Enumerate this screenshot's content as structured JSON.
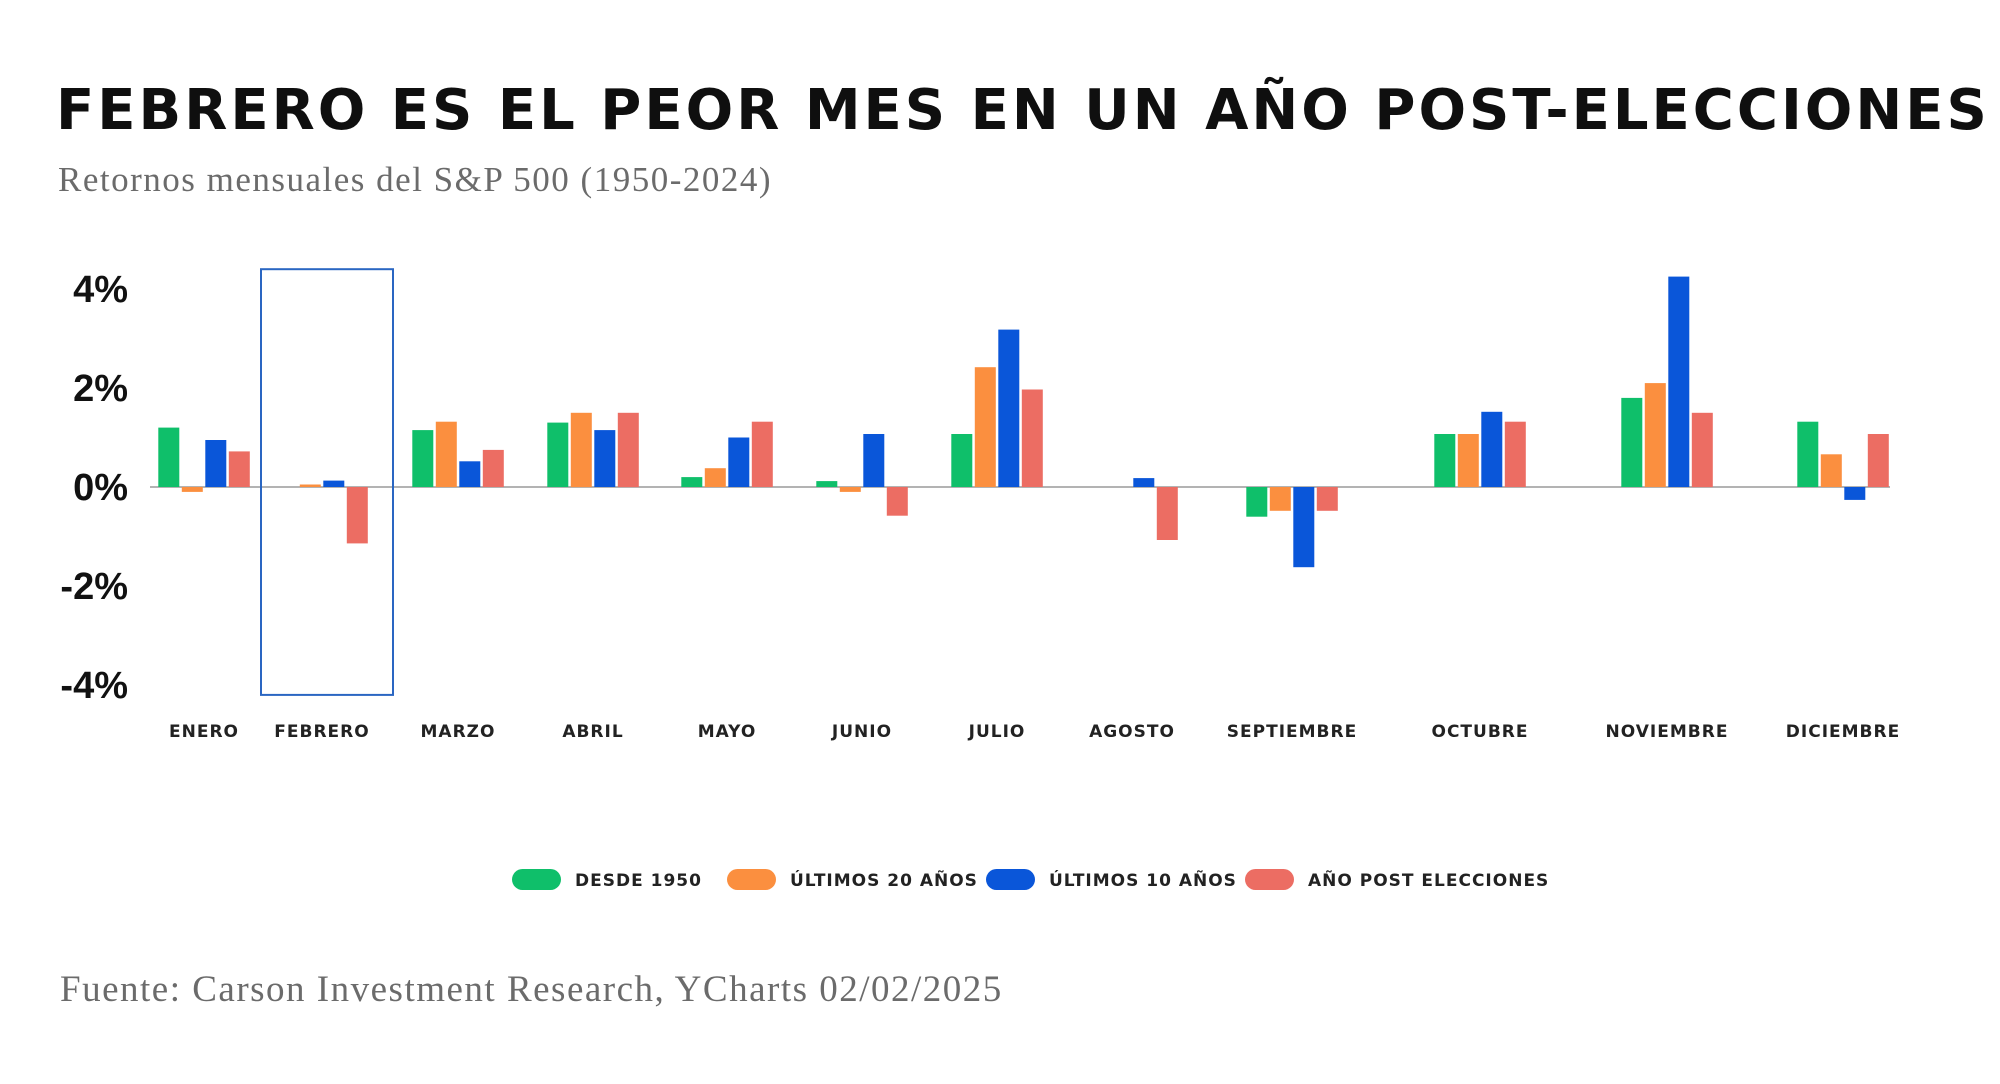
{
  "title": "FEBRERO ES EL PEOR MES EN UN AÑO POST-ELECCIONES",
  "subtitle": "Retornos mensuales del S&P 500 (1950-2024)",
  "source": "Fuente: Carson Investment Research, YCharts 02/02/2025",
  "chart_data": {
    "type": "bar",
    "title": "FEBRERO ES EL PEOR MES EN UN AÑO POST-ELECCIONES",
    "subtitle": "Retornos mensuales del S&P 500 (1950-2024)",
    "xlabel": "",
    "ylabel": "",
    "ylim": [
      -4,
      4
    ],
    "yticks": [
      4,
      2,
      0,
      -2,
      -4
    ],
    "ytick_labels": [
      "4%",
      "2%",
      "0%",
      "-2%",
      "-4%"
    ],
    "grid": false,
    "legend_position": "bottom",
    "highlight_category": "FEBRERO",
    "categories": [
      "ENERO",
      "FEBRERO",
      "MARZO",
      "ABRIL",
      "MAYO",
      "JUNIO",
      "JULIO",
      "AGOSTO",
      "SEPTIEMBRE",
      "OCTUBRE",
      "NOVIEMBRE",
      "DICIEMBRE"
    ],
    "series": [
      {
        "name": "DESDE 1950",
        "color": "#0fbf6a",
        "values": [
          1.2,
          0.0,
          1.15,
          1.3,
          0.2,
          0.12,
          1.07,
          0.0,
          -0.6,
          1.07,
          1.8,
          1.32
        ]
      },
      {
        "name": "ÚLTIMOS 20 AÑOS",
        "color": "#fb8f3f",
        "values": [
          -0.1,
          0.05,
          1.32,
          1.5,
          0.38,
          -0.1,
          2.42,
          0.0,
          -0.48,
          1.07,
          2.1,
          0.66
        ]
      },
      {
        "name": "ÚLTIMOS 10 AÑOS",
        "color": "#0a56d9",
        "values": [
          0.95,
          0.13,
          0.52,
          1.15,
          1.0,
          1.07,
          3.18,
          0.18,
          -1.62,
          1.52,
          4.25,
          -0.26
        ]
      },
      {
        "name": "AÑO POST ELECCIONES",
        "color": "#ec6d63",
        "values": [
          0.72,
          -1.14,
          0.75,
          1.5,
          1.32,
          -0.58,
          1.97,
          -1.07,
          -0.48,
          1.32,
          1.5,
          1.07
        ]
      }
    ]
  }
}
